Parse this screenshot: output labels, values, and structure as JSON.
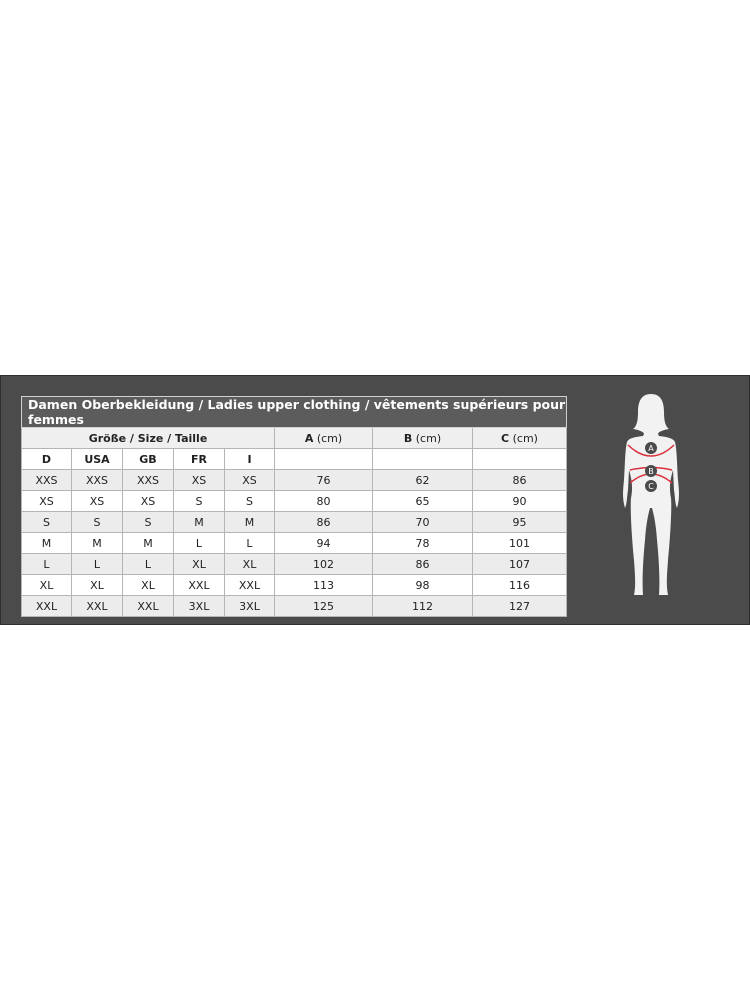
{
  "title": "Damen Oberbekleidung / Ladies upper clothing / vêtements supérieurs pour femmes",
  "size_group_header": "Größe / Size / Taille",
  "measure_headers": [
    {
      "letter": "A",
      "unit": "(cm)"
    },
    {
      "letter": "B",
      "unit": "(cm)"
    },
    {
      "letter": "C",
      "unit": "(cm)"
    }
  ],
  "size_columns": [
    "D",
    "USA",
    "GB",
    "FR",
    "I"
  ],
  "rows": [
    [
      "XXS",
      "XXS",
      "XXS",
      "XS",
      "XS",
      "76",
      "62",
      "86"
    ],
    [
      "XS",
      "XS",
      "XS",
      "S",
      "S",
      "80",
      "65",
      "90"
    ],
    [
      "S",
      "S",
      "S",
      "M",
      "M",
      "86",
      "70",
      "95"
    ],
    [
      "M",
      "M",
      "M",
      "L",
      "L",
      "94",
      "78",
      "101"
    ],
    [
      "L",
      "L",
      "L",
      "XL",
      "XL",
      "102",
      "86",
      "107"
    ],
    [
      "XL",
      "XL",
      "XL",
      "XXL",
      "XXL",
      "113",
      "98",
      "116"
    ],
    [
      "XXL",
      "XXL",
      "XXL",
      "3XL",
      "3XL",
      "125",
      "112",
      "127"
    ]
  ],
  "figure": {
    "markers": [
      "A",
      "B",
      "C"
    ],
    "line_color": "#d9303c"
  }
}
